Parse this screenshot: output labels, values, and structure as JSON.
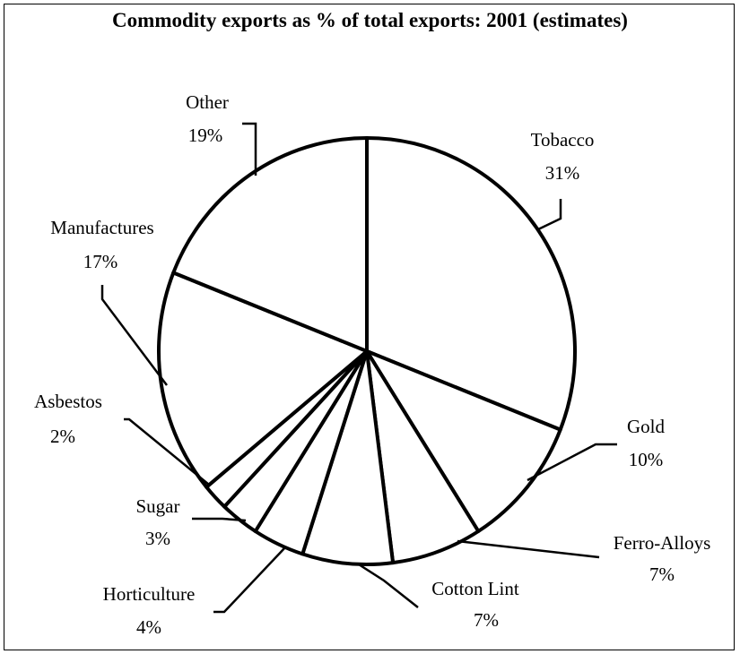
{
  "chart_data": {
    "type": "pie",
    "title": "Commodity exports as % of total exports: 2001 (estimates)",
    "slices": [
      {
        "name": "Tobacco",
        "value": 31,
        "label": "31%"
      },
      {
        "name": "Gold",
        "value": 10,
        "label": "10%"
      },
      {
        "name": "Ferro-Alloys",
        "value": 7,
        "label": "7%"
      },
      {
        "name": "Cotton Lint",
        "value": 7,
        "label": "7%"
      },
      {
        "name": "Horticulture",
        "value": 4,
        "label": "4%"
      },
      {
        "name": "Sugar",
        "value": 3,
        "label": "3%"
      },
      {
        "name": "Asbestos",
        "value": 2,
        "label": "2%"
      },
      {
        "name": "Manufactures",
        "value": 17,
        "label": "17%"
      },
      {
        "name": "Other",
        "value": 19,
        "label": "19%"
      }
    ],
    "start": "12 o'clock",
    "direction": "clockwise"
  }
}
